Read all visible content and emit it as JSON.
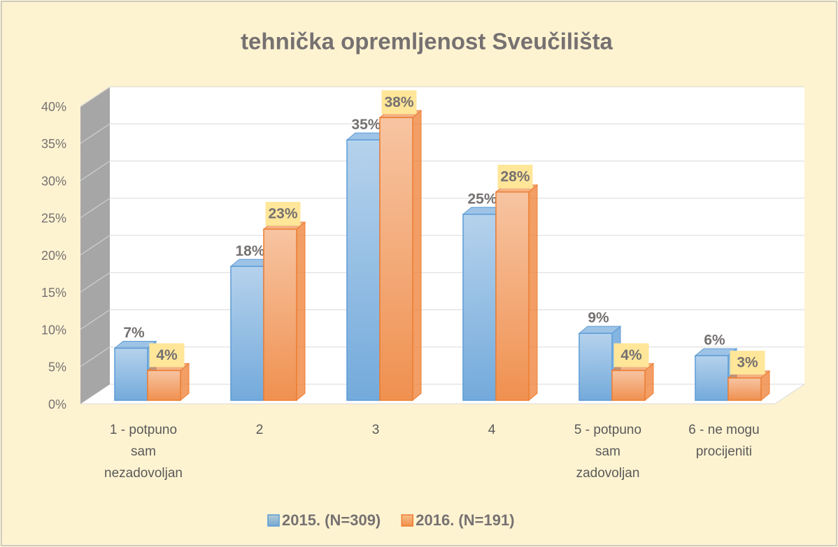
{
  "chart_data": {
    "type": "bar3d",
    "title": "tehnička opremljenost Sveučilišta",
    "categories": [
      "1 - potpuno sam nezadovoljan",
      "2",
      "3",
      "4",
      "5 - potpuno sam zadovoljan",
      "6 - ne mogu procijeniti"
    ],
    "series": [
      {
        "name": "2015. (N=309)",
        "color": "#5b9bd5",
        "values": [
          7,
          18,
          35,
          25,
          9,
          6
        ],
        "value_labels": [
          "7%",
          "18%",
          "35%",
          "25%",
          "9%",
          "6%"
        ]
      },
      {
        "name": "2016. (N=191)",
        "color": "#ed7d31",
        "values": [
          4,
          23,
          38,
          28,
          4,
          3
        ],
        "value_labels": [
          "4%",
          "23%",
          "38%",
          "28%",
          "4%",
          "3%"
        ]
      }
    ],
    "ylim": [
      0,
      40
    ],
    "yticks": [
      {
        "value": 0,
        "label": "0%"
      },
      {
        "value": 5,
        "label": "5%"
      },
      {
        "value": 10,
        "label": "10%"
      },
      {
        "value": 15,
        "label": "15%"
      },
      {
        "value": 20,
        "label": "20%"
      },
      {
        "value": 25,
        "label": "25%"
      },
      {
        "value": 30,
        "label": "30%"
      },
      {
        "value": 35,
        "label": "35%"
      },
      {
        "value": 40,
        "label": "40%"
      }
    ],
    "grid": true,
    "legend": "bottom"
  }
}
